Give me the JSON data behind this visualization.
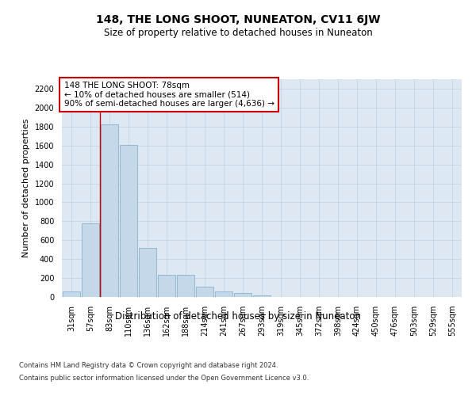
{
  "title": "148, THE LONG SHOOT, NUNEATON, CV11 6JW",
  "subtitle": "Size of property relative to detached houses in Nuneaton",
  "xlabel": "Distribution of detached houses by size in Nuneaton",
  "ylabel": "Number of detached properties",
  "categories": [
    "31sqm",
    "57sqm",
    "83sqm",
    "110sqm",
    "136sqm",
    "162sqm",
    "188sqm",
    "214sqm",
    "241sqm",
    "267sqm",
    "293sqm",
    "319sqm",
    "345sqm",
    "372sqm",
    "398sqm",
    "424sqm",
    "450sqm",
    "476sqm",
    "503sqm",
    "529sqm",
    "555sqm"
  ],
  "values": [
    55,
    780,
    1820,
    1610,
    520,
    235,
    235,
    105,
    55,
    40,
    20,
    0,
    0,
    0,
    0,
    0,
    0,
    0,
    0,
    0,
    0
  ],
  "bar_color": "#c5d8ea",
  "bar_edge_color": "#7aaac8",
  "grid_color": "#c8d8e8",
  "bg_color": "#dde8f2",
  "vline_color": "#cc0000",
  "vline_x": 1.5,
  "annotation_line1": "148 THE LONG SHOOT: 78sqm",
  "annotation_line2": "← 10% of detached houses are smaller (514)",
  "annotation_line3": "90% of semi-detached houses are larger (4,636) →",
  "annotation_edgecolor": "#cc0000",
  "ylim": [
    0,
    2300
  ],
  "yticks": [
    0,
    200,
    400,
    600,
    800,
    1000,
    1200,
    1400,
    1600,
    1800,
    2000,
    2200
  ],
  "footer_line1": "Contains HM Land Registry data © Crown copyright and database right 2024.",
  "footer_line2": "Contains public sector information licensed under the Open Government Licence v3.0.",
  "title_fontsize": 10,
  "subtitle_fontsize": 8.5,
  "ylabel_fontsize": 8,
  "xlabel_fontsize": 8.5,
  "tick_fontsize": 7,
  "ann_fontsize": 7.5,
  "footer_fontsize": 6
}
